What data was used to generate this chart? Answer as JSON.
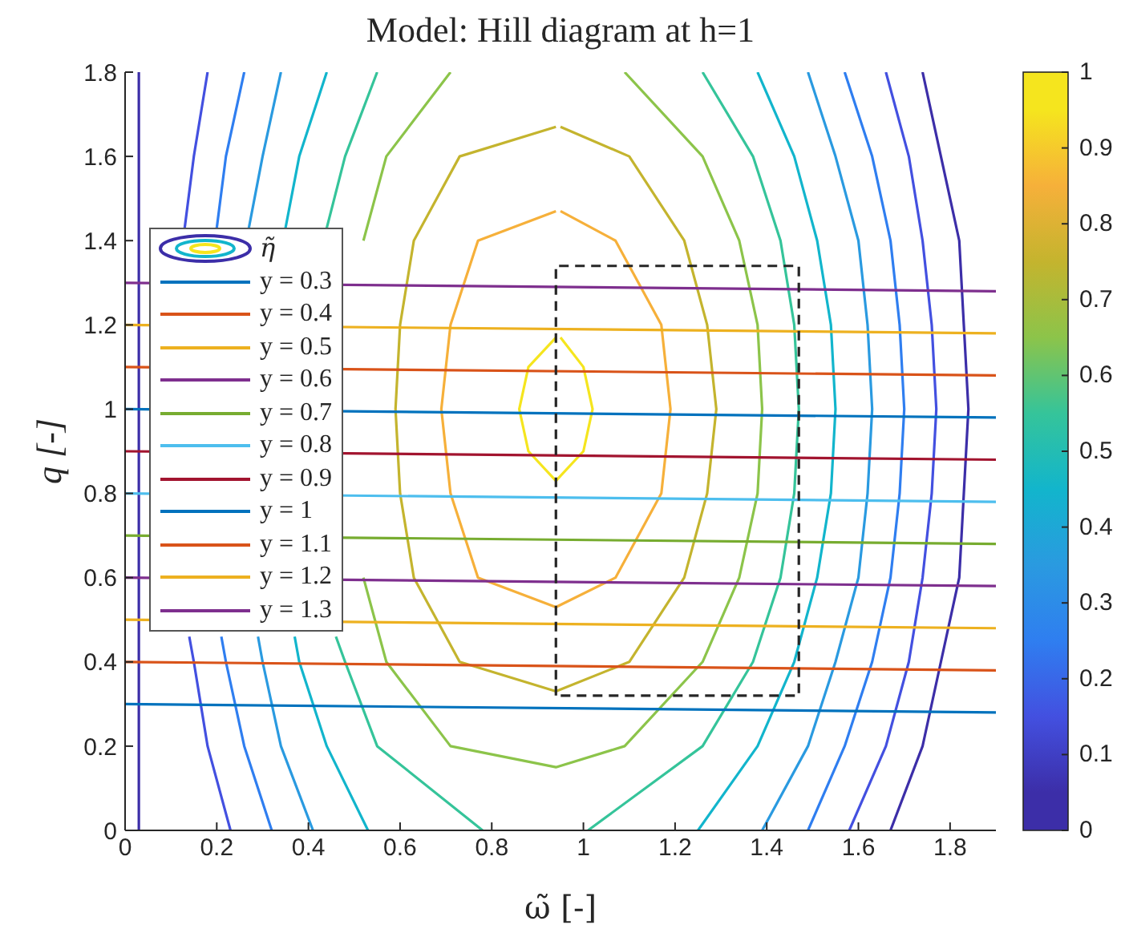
{
  "chart_data": {
    "type": "line",
    "title": "Model: Hill diagram at h=1",
    "xlabel": "ω̃ [-]",
    "ylabel": "q [-]",
    "legend_title": "η̃",
    "legend": "left",
    "clim": [
      0,
      1
    ],
    "cticks": [
      0,
      0.1,
      0.2,
      0.3,
      0.4,
      0.5,
      0.6,
      0.7,
      0.8,
      0.9,
      1
    ],
    "xlim": [
      0,
      1.9
    ],
    "xticks": [
      0,
      0.2,
      0.4,
      0.6,
      0.8,
      1,
      1.2,
      1.4,
      1.6,
      1.8
    ],
    "ylim": [
      0,
      1.8
    ],
    "yticks": [
      0,
      0.2,
      0.4,
      0.6,
      0.8,
      1,
      1.2,
      1.4,
      1.6,
      1.8
    ],
    "series": [
      {
        "color": "#3c2ea8",
        "x": [
          0.03,
          0.03,
          0.03,
          0.03,
          0.03,
          0.03,
          0.03,
          0.03,
          0.03,
          0.03,
          null,
          1.67,
          1.74,
          1.78,
          1.82,
          1.83,
          1.84,
          1.83,
          1.82,
          1.78,
          1.74
        ],
        "values": [
          1.8,
          1.6,
          1.4,
          1.2,
          1.0,
          0.8,
          0.6,
          0.4,
          0.2,
          0,
          null,
          0,
          0.2,
          0.4,
          0.6,
          0.8,
          1.0,
          1.2,
          1.4,
          1.6,
          1.8
        ]
      },
      {
        "color": "#4350e0",
        "x": [
          0.18,
          0.15,
          0.13,
          null,
          0.14,
          0.15,
          0.18,
          0.23,
          null,
          1.58,
          1.66,
          1.71,
          1.74,
          1.76,
          1.77,
          1.76,
          1.74,
          1.71,
          1.66
        ],
        "values": [
          1.8,
          1.6,
          1.43,
          null,
          0.46,
          0.4,
          0.2,
          0,
          null,
          0,
          0.2,
          0.4,
          0.6,
          0.8,
          1.0,
          1.2,
          1.4,
          1.6,
          1.8
        ]
      },
      {
        "color": "#2f7ef0",
        "x": [
          0.26,
          0.22,
          0.2,
          null,
          0.21,
          0.22,
          0.26,
          0.32,
          null,
          1.49,
          1.57,
          1.63,
          1.67,
          1.69,
          1.7,
          1.69,
          1.67,
          1.63,
          1.57
        ],
        "values": [
          1.8,
          1.6,
          1.43,
          null,
          0.46,
          0.4,
          0.2,
          0,
          null,
          0,
          0.2,
          0.4,
          0.6,
          0.8,
          1.0,
          1.2,
          1.4,
          1.6,
          1.8
        ]
      },
      {
        "color": "#2a9ae0",
        "x": [
          0.34,
          0.3,
          0.27,
          null,
          0.29,
          0.3,
          0.34,
          0.41,
          null,
          1.39,
          1.49,
          1.55,
          1.6,
          1.62,
          1.63,
          1.62,
          1.6,
          1.55,
          1.49
        ],
        "values": [
          1.8,
          1.6,
          1.43,
          null,
          0.46,
          0.4,
          0.2,
          0,
          null,
          0,
          0.2,
          0.4,
          0.6,
          0.8,
          1.0,
          1.2,
          1.4,
          1.6,
          1.8
        ]
      },
      {
        "color": "#12b5cc",
        "x": [
          0.44,
          0.38,
          0.35,
          null,
          0.37,
          0.38,
          0.44,
          0.53,
          null,
          1.25,
          1.38,
          1.46,
          1.51,
          1.54,
          1.55,
          1.54,
          1.51,
          1.46,
          1.38
        ],
        "values": [
          1.8,
          1.6,
          1.43,
          null,
          0.46,
          0.4,
          0.2,
          0,
          null,
          0,
          0.2,
          0.4,
          0.6,
          0.8,
          1.0,
          1.2,
          1.4,
          1.6,
          1.8
        ]
      },
      {
        "color": "#35c49a",
        "x": [
          0.55,
          0.48,
          0.44,
          null,
          0.46,
          0.48,
          0.55,
          0.78,
          null,
          1.01,
          1.26,
          1.37,
          1.43,
          1.46,
          1.47,
          1.46,
          1.43,
          1.37,
          1.26
        ],
        "values": [
          1.8,
          1.6,
          1.43,
          null,
          0.46,
          0.4,
          0.2,
          0,
          null,
          0,
          0.2,
          0.4,
          0.6,
          0.8,
          1.0,
          1.2,
          1.4,
          1.6,
          1.8
        ]
      },
      {
        "color": "#8cc44a",
        "x": [
          0.71,
          0.57,
          0.52,
          null,
          0.52,
          0.57,
          0.71,
          0.94,
          1.09,
          1.26,
          1.34,
          1.38,
          1.39,
          1.38,
          1.34,
          1.26,
          1.09
        ],
        "values": [
          1.8,
          1.6,
          1.4,
          null,
          0.6,
          0.4,
          0.2,
          0.15,
          0.2,
          0.4,
          0.6,
          0.8,
          1.0,
          1.2,
          1.4,
          1.6,
          1.8
        ]
      },
      {
        "color": "#c4b42e",
        "x": [
          0.94,
          0.73,
          0.63,
          0.6,
          0.59,
          0.6,
          0.63,
          0.73,
          0.94,
          1.1,
          1.22,
          1.27,
          1.29,
          1.27,
          1.22,
          1.1,
          0.95
        ],
        "values": [
          1.67,
          1.6,
          1.4,
          1.2,
          1.0,
          0.8,
          0.6,
          0.4,
          0.33,
          0.4,
          0.6,
          0.8,
          1.0,
          1.2,
          1.4,
          1.6,
          1.67
        ]
      },
      {
        "color": "#f6b03a",
        "x": [
          0.94,
          0.77,
          0.71,
          0.69,
          0.71,
          0.77,
          0.94,
          1.07,
          1.17,
          1.19,
          1.17,
          1.07,
          0.95
        ],
        "values": [
          1.47,
          1.4,
          1.2,
          1.0,
          0.8,
          0.6,
          0.53,
          0.6,
          0.8,
          1.0,
          1.2,
          1.4,
          1.47
        ]
      },
      {
        "color": "#f5e51e",
        "x": [
          0.94,
          0.88,
          0.86,
          0.88,
          0.94,
          1.0,
          1.02,
          1.0,
          0.95
        ],
        "values": [
          1.17,
          1.1,
          1.0,
          0.9,
          0.83,
          0.9,
          1.0,
          1.1,
          1.17
        ]
      },
      {
        "name": "y = 0.3",
        "color": "#0072bd",
        "x": [
          0,
          1.9
        ],
        "values": [
          0.3,
          0.28
        ]
      },
      {
        "name": "y = 0.4",
        "color": "#d95319",
        "x": [
          0,
          1.9
        ],
        "values": [
          0.4,
          0.38
        ]
      },
      {
        "name": "y = 0.5",
        "color": "#edb120",
        "x": [
          0,
          1.9
        ],
        "values": [
          0.5,
          0.48
        ]
      },
      {
        "name": "y = 0.6",
        "color": "#7e2f8e",
        "x": [
          0,
          1.9
        ],
        "values": [
          0.6,
          0.58
        ]
      },
      {
        "name": "y = 0.7",
        "color": "#77ac30",
        "x": [
          0,
          1.9
        ],
        "values": [
          0.7,
          0.68
        ]
      },
      {
        "name": "y = 0.8",
        "color": "#4dbeee",
        "x": [
          0,
          1.9
        ],
        "values": [
          0.8,
          0.78
        ]
      },
      {
        "name": "y = 0.9",
        "color": "#a2142f",
        "x": [
          0,
          1.9
        ],
        "values": [
          0.9,
          0.88
        ]
      },
      {
        "name": "y = 1",
        "color": "#0072bd",
        "x": [
          0,
          1.9
        ],
        "values": [
          1.0,
          0.98
        ]
      },
      {
        "name": "y = 1.1",
        "color": "#d95319",
        "x": [
          0,
          1.9
        ],
        "values": [
          1.1,
          1.08
        ]
      },
      {
        "name": "y = 1.2",
        "color": "#edb120",
        "x": [
          0,
          1.9
        ],
        "values": [
          1.2,
          1.18
        ]
      },
      {
        "name": "y = 1.3",
        "color": "#7e2f8e",
        "x": [
          0,
          1.9
        ],
        "values": [
          1.3,
          1.28
        ]
      },
      {
        "color": "#262626",
        "line_style": "dashed",
        "x": [
          0.94,
          0.94,
          1.47,
          1.47,
          0.95
        ],
        "values": [
          0.32,
          1.34,
          1.34,
          0.32,
          0.32
        ]
      }
    ]
  }
}
